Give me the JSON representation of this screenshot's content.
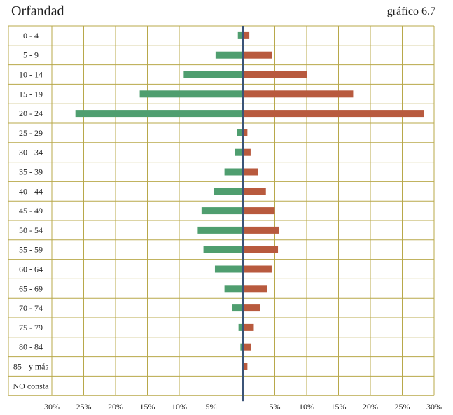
{
  "title": "Orfandad",
  "figure_ref": "gráfico 6.7",
  "colors": {
    "left": "#4f9e6f",
    "right": "#b85a3e",
    "axis": "#3b5477",
    "grid": "#b8a84a"
  },
  "chart_data": {
    "type": "bar",
    "orientation": "horizontal-diverging",
    "categories": [
      "0 - 4",
      "5 - 9",
      "10 - 14",
      "15 - 19",
      "20 - 24",
      "25 - 29",
      "30 - 34",
      "35 - 39",
      "40 - 44",
      "45 - 49",
      "50 - 54",
      "55 - 59",
      "60 - 64",
      "65 - 69",
      "70 - 74",
      "75 - 79",
      "80 - 84",
      "85 - y más",
      "NO consta"
    ],
    "series": [
      {
        "side": "left",
        "values": [
          0.8,
          4.3,
          9.3,
          16.2,
          26.3,
          0.9,
          1.3,
          2.9,
          4.6,
          6.5,
          7.1,
          6.2,
          4.4,
          2.9,
          1.7,
          0.7,
          0.4,
          0,
          0
        ]
      },
      {
        "side": "right",
        "values": [
          1.0,
          4.6,
          10.0,
          17.3,
          28.4,
          0.7,
          1.2,
          2.4,
          3.6,
          5.0,
          5.7,
          5.5,
          4.5,
          3.8,
          2.7,
          1.7,
          1.3,
          0.7,
          0
        ]
      }
    ],
    "xlim": [
      -30,
      30
    ],
    "xticks": [
      -30,
      -25,
      -20,
      -15,
      -10,
      -5,
      5,
      10,
      15,
      20,
      25,
      30
    ],
    "xtick_labels": [
      "30%",
      "25%",
      "20%",
      "15%",
      "10%",
      "5%",
      "5%",
      "10%",
      "15%",
      "20%",
      "25%",
      "30%"
    ],
    "grid": true
  }
}
